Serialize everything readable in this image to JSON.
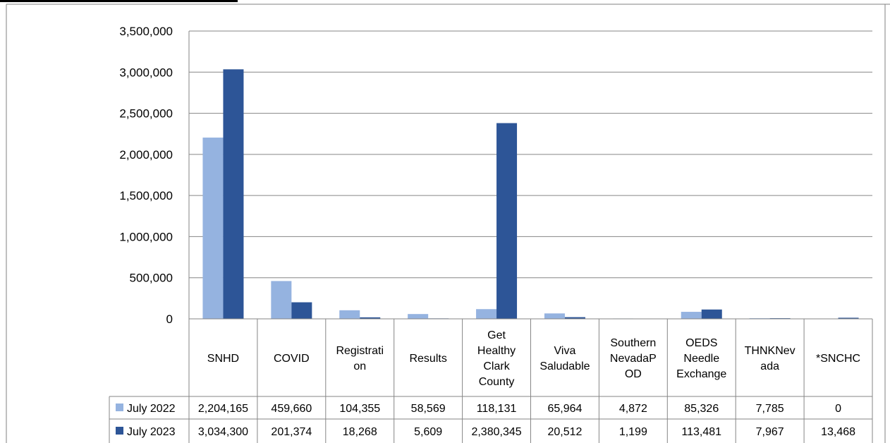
{
  "chart_data": {
    "type": "bar",
    "title": "",
    "xlabel": "",
    "ylabel": "",
    "ylim": [
      0,
      3500000
    ],
    "yticks": [
      0,
      500000,
      1000000,
      1500000,
      2000000,
      2500000,
      3000000,
      3500000
    ],
    "ytick_labels": [
      "0",
      "500,000",
      "1,000,000",
      "1,500,000",
      "2,000,000",
      "2,500,000",
      "3,000,000",
      "3,500,000"
    ],
    "grid": true,
    "legend": "data-table",
    "categories": [
      [
        "SNHD"
      ],
      [
        "COVID"
      ],
      [
        "Registrati",
        "on"
      ],
      [
        "Results"
      ],
      [
        "Get",
        "Healthy",
        "Clark",
        "County"
      ],
      [
        "Viva",
        "Saludable"
      ],
      [
        "Southern",
        "NevadaP",
        "OD"
      ],
      [
        "OEDS",
        "Needle",
        "Exchange"
      ],
      [
        "THNKNev",
        "ada"
      ],
      [
        "*SNCHC"
      ]
    ],
    "series": [
      {
        "name": "July 2022",
        "color": "#95b3e0",
        "values": [
          2204165,
          459660,
          104355,
          58569,
          118131,
          65964,
          4872,
          85326,
          7785,
          0
        ],
        "labels": [
          "2,204,165",
          "459,660",
          "104,355",
          "58,569",
          "118,131",
          "65,964",
          "4,872",
          "85,326",
          "7,785",
          "0"
        ]
      },
      {
        "name": "July 2023",
        "color": "#2d5597",
        "values": [
          3034300,
          201374,
          18268,
          5609,
          2380345,
          20512,
          1199,
          113481,
          7967,
          13468
        ],
        "labels": [
          "3,034,300",
          "201,374",
          "18,268",
          "5,609",
          "2,380,345",
          "20,512",
          "1,199",
          "113,481",
          "7,967",
          "13,468"
        ]
      }
    ]
  }
}
